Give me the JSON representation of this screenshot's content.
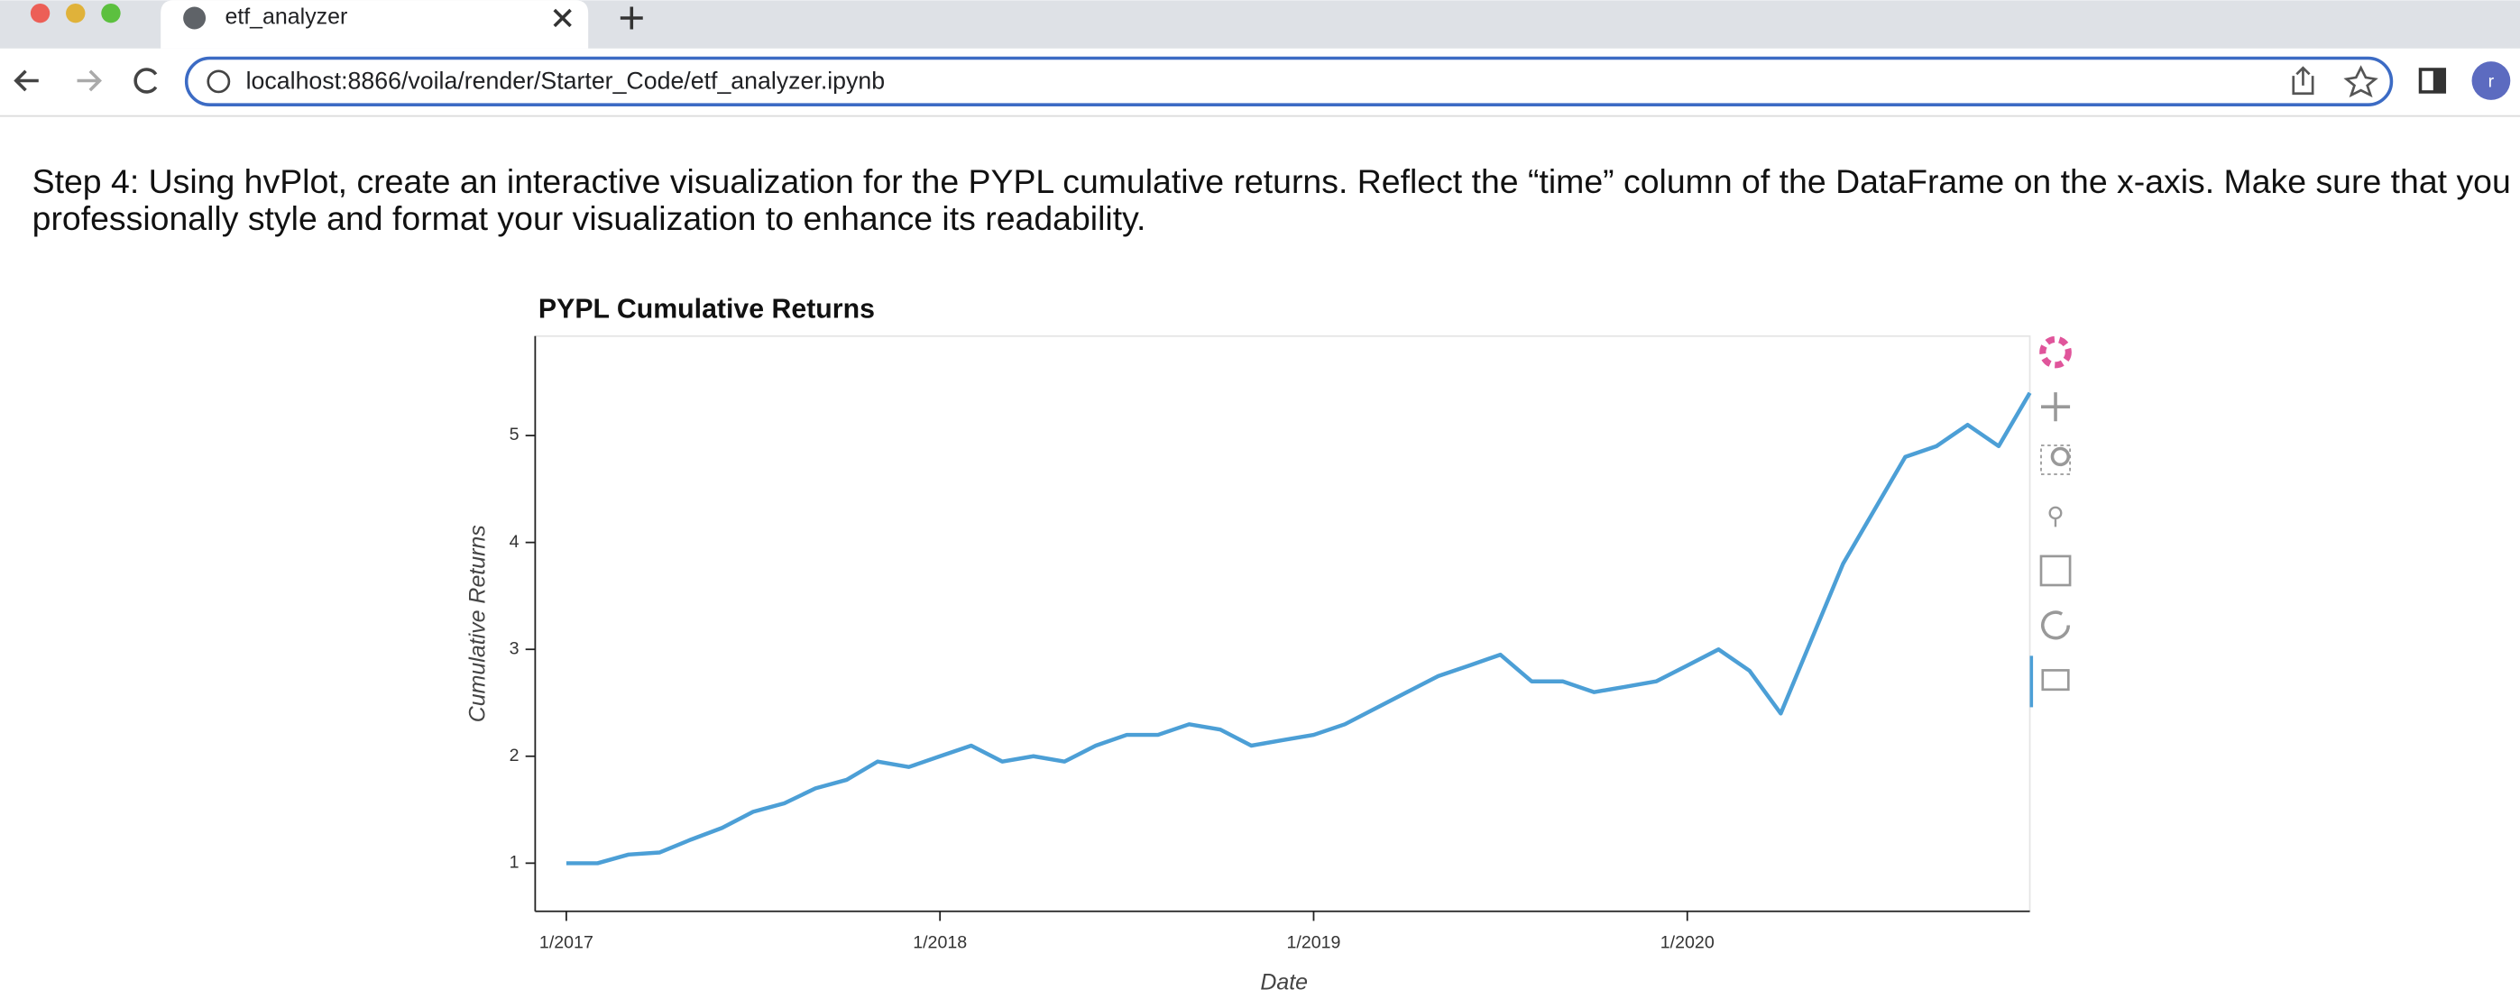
{
  "browser": {
    "tab_title": "etf_analyzer",
    "url": "localhost:8866/voila/render/Starter_Code/etf_analyzer.ipynb",
    "avatar": "r"
  },
  "step_text": "Step 4: Using hvPlot, create an interactive visualization for the PYPL cumulative returns. Reflect the “time” column of the DataFrame on the x-axis. Make sure that you professionally style and format your visualization to enhance its readability.",
  "chart_data": {
    "type": "line",
    "title": "PYPL Cumulative Returns",
    "x_label": "Date",
    "y_label": "Cumulative Returns",
    "color": "#4c9fd6",
    "x": [
      "2017-01",
      "2017-02",
      "2017-03",
      "2017-04",
      "2017-05",
      "2017-06",
      "2017-07",
      "2017-08",
      "2017-09",
      "2017-10",
      "2017-11",
      "2017-12",
      "2018-01",
      "2018-02",
      "2018-03",
      "2018-04",
      "2018-05",
      "2018-06",
      "2018-07",
      "2018-08",
      "2018-09",
      "2018-10",
      "2018-11",
      "2018-12",
      "2019-01",
      "2019-02",
      "2019-03",
      "2019-04",
      "2019-05",
      "2019-06",
      "2019-07",
      "2019-08",
      "2019-09",
      "2019-10",
      "2019-11",
      "2019-12",
      "2020-01",
      "2020-02",
      "2020-03",
      "2020-04",
      "2020-05",
      "2020-06",
      "2020-07",
      "2020-08",
      "2020-09",
      "2020-10",
      "2020-11",
      "2020-12"
    ],
    "values": [
      1.0,
      1.0,
      1.08,
      1.1,
      1.22,
      1.33,
      1.48,
      1.56,
      1.7,
      1.78,
      1.95,
      1.9,
      2.0,
      2.1,
      1.95,
      2.0,
      1.95,
      2.1,
      2.2,
      2.2,
      2.3,
      2.25,
      2.1,
      2.15,
      2.2,
      2.3,
      2.45,
      2.6,
      2.75,
      2.85,
      2.95,
      2.7,
      2.7,
      2.6,
      2.65,
      2.7,
      2.85,
      3.0,
      2.8,
      2.4,
      3.1,
      3.8,
      4.3,
      4.8,
      4.9,
      5.1,
      4.9,
      5.4
    ],
    "xlim": [
      "2016-12",
      "2020-12"
    ],
    "ylim": [
      0.55,
      5.93
    ],
    "xticks": [
      {
        "value": "2017-01",
        "label": "1/2017"
      },
      {
        "value": "2018-01",
        "label": "1/2018"
      },
      {
        "value": "2019-01",
        "label": "1/2019"
      },
      {
        "value": "2020-01",
        "label": "1/2020"
      }
    ],
    "yticks": [
      1,
      2,
      3,
      4,
      5
    ],
    "grid": false
  }
}
